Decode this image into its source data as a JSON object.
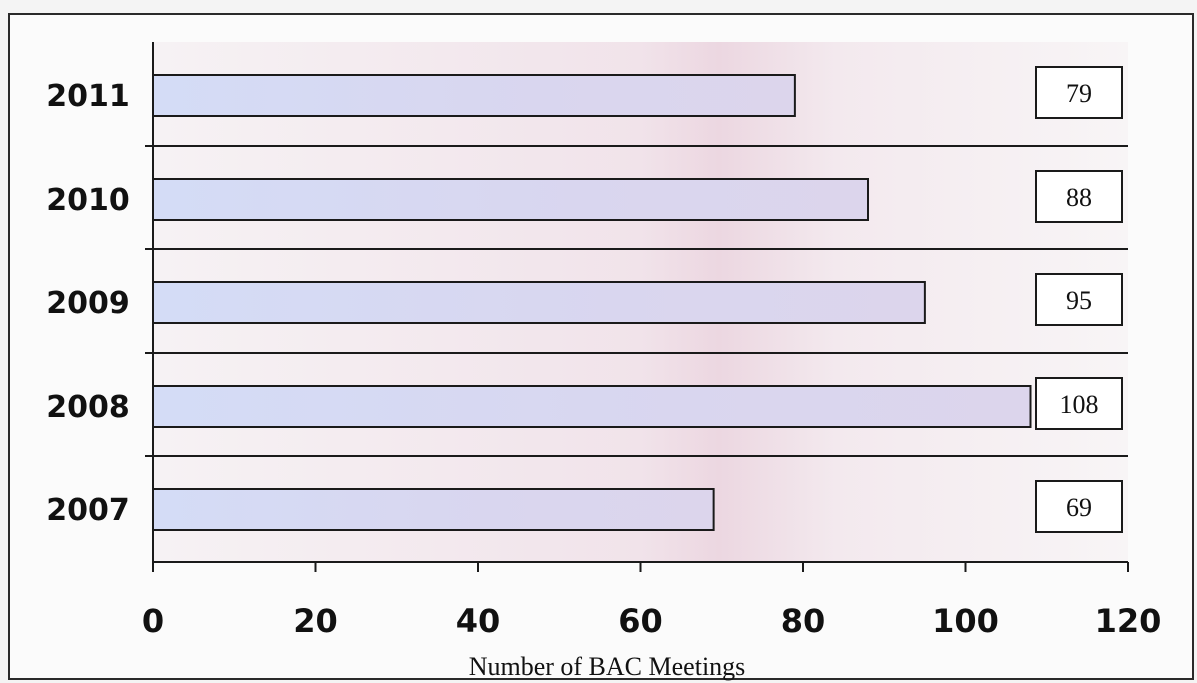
{
  "chart_data": {
    "type": "bar",
    "orientation": "horizontal",
    "categories": [
      "2011",
      "2010",
      "2009",
      "2008",
      "2007"
    ],
    "values": [
      79,
      88,
      95,
      108,
      69
    ],
    "data_labels": [
      "79",
      "88",
      "95",
      "108",
      "69"
    ],
    "xlabel": "Number of BAC Meetings",
    "ylabel": "",
    "title": "",
    "xlim": [
      0,
      120
    ],
    "xticks": [
      0,
      20,
      40,
      60,
      80,
      100,
      120
    ],
    "xtick_labels": [
      "0",
      "20",
      "40",
      "60",
      "80",
      "100",
      "120"
    ],
    "grid": "horizontal separators between categories",
    "legend": "none",
    "colors": {
      "bar_fill": "#d6ddf3",
      "bar_stroke": "#1a1a1a",
      "plot_background": "#f3ecf0",
      "label_box_fill": "#ffffff"
    }
  }
}
